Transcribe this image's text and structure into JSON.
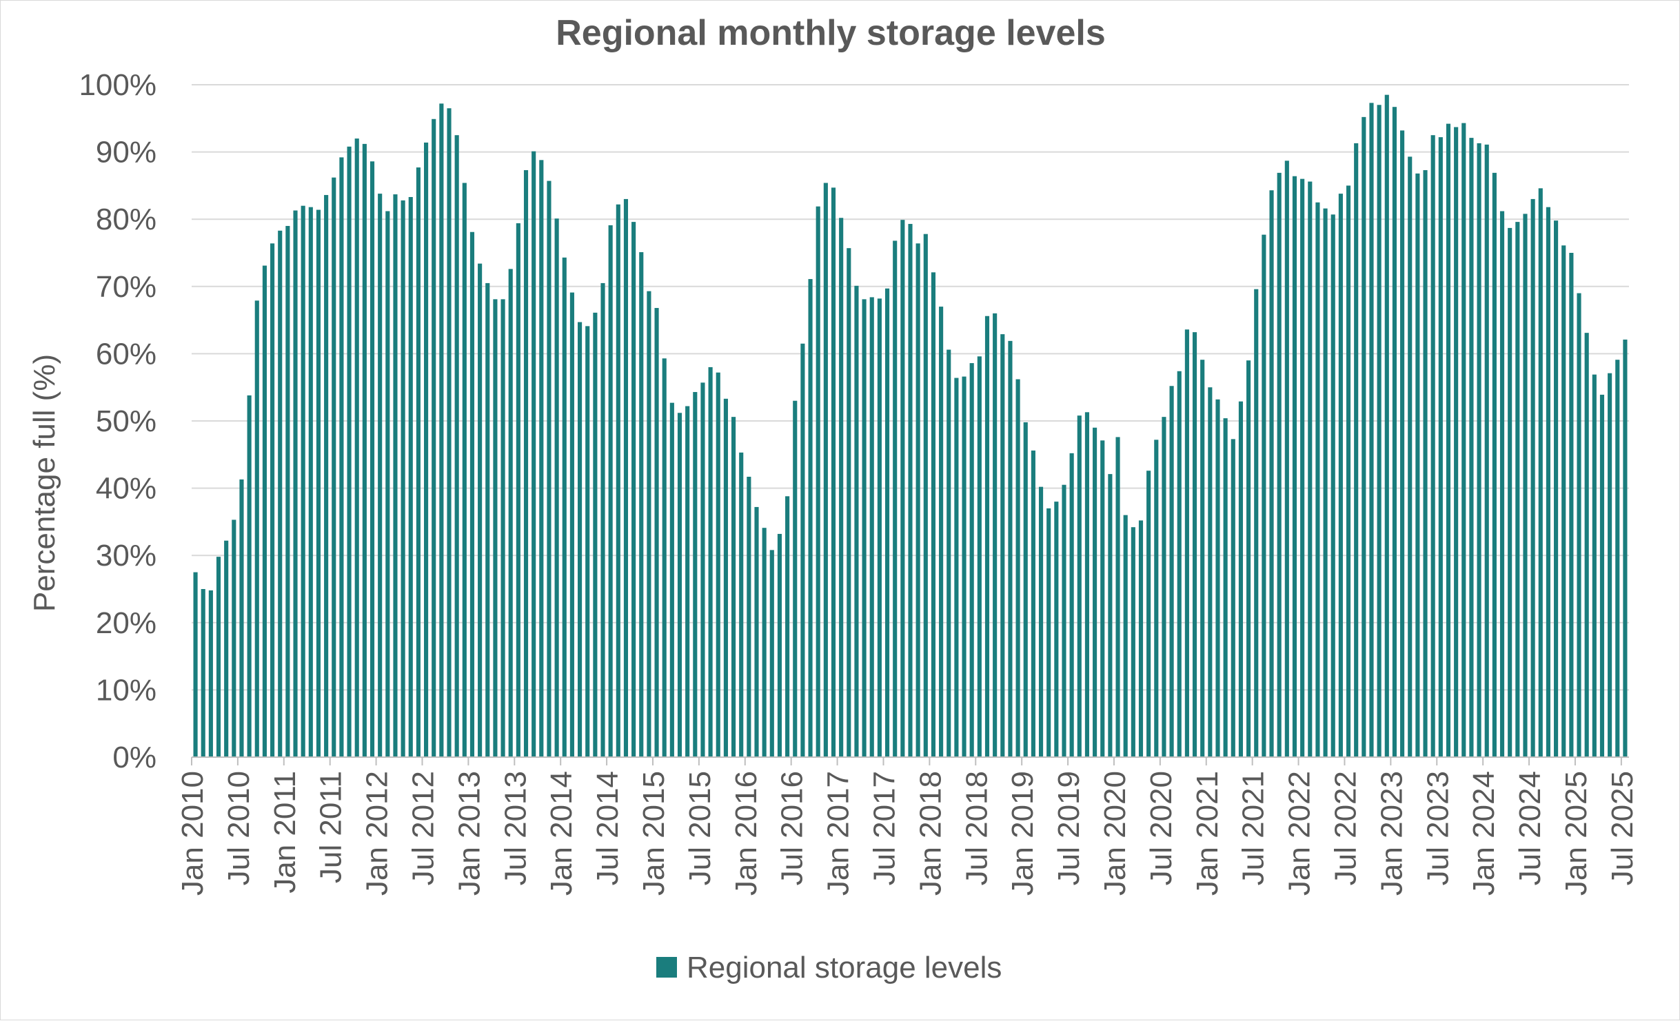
{
  "chart_data": {
    "type": "bar",
    "title": "Regional monthly storage levels",
    "ylabel": "Percentage full (%)",
    "xlabel": "",
    "ylim": [
      0,
      100
    ],
    "yticks": [
      "0%",
      "10%",
      "20%",
      "30%",
      "40%",
      "50%",
      "60%",
      "70%",
      "80%",
      "90%",
      "100%"
    ],
    "x_tick_labels": [
      "Jan 2010",
      "Jul 2010",
      "Jan 2011",
      "Jul 2011",
      "Jan 2012",
      "Jul 2012",
      "Jan 2013",
      "Jul 2013",
      "Jan 2014",
      "Jul 2014",
      "Jan 2015",
      "Jul 2015",
      "Jan 2016",
      "Jul 2016",
      "Jan 2017",
      "Jul 2017",
      "Jan 2018",
      "Jul 2018",
      "Jan 2019",
      "Jul 2019",
      "Jan 2020",
      "Jul 2020",
      "Jan 2021",
      "Jul 2021",
      "Jan 2022",
      "Jul 2022",
      "Jan 2023",
      "Jul 2023",
      "Jan 2024",
      "Jul 2024",
      "Jan 2025",
      "Jul 2025"
    ],
    "grid": true,
    "legend_position": "bottom",
    "color": "#1a7d7d",
    "series": [
      {
        "name": "Regional storage levels",
        "values": [
          27.5,
          25,
          24.8,
          29.8,
          32.2,
          35.3,
          41.3,
          53.8,
          67.9,
          73.1,
          76.4,
          78.3,
          79,
          81.3,
          82,
          81.8,
          81.4,
          83.6,
          86.2,
          89.2,
          90.8,
          92,
          91.2,
          88.6,
          83.8,
          81.2,
          83.7,
          82.8,
          83.3,
          87.7,
          91.4,
          94.9,
          97.2,
          96.5,
          92.5,
          85.4,
          78.1,
          73.4,
          70.5,
          68.1,
          68.1,
          72.6,
          79.4,
          87.3,
          90.1,
          88.8,
          85.7,
          80.1,
          74.3,
          69.1,
          64.7,
          64.1,
          66.1,
          70.5,
          79.1,
          82.2,
          83,
          79.6,
          75.1,
          69.3,
          66.8,
          59.3,
          52.7,
          51.2,
          52.2,
          54.3,
          55.7,
          58,
          57.2,
          53.3,
          50.6,
          45.3,
          41.7,
          37.2,
          34.1,
          30.8,
          33.2,
          38.8,
          53,
          61.5,
          71.1,
          81.9,
          85.4,
          84.7,
          80.2,
          75.7,
          70.1,
          68.1,
          68.4,
          68.2,
          69.7,
          76.8,
          79.9,
          79.3,
          76.4,
          77.8,
          72.1,
          67,
          60.6,
          56.4,
          56.6,
          58.6,
          59.6,
          65.6,
          66,
          62.9,
          61.9,
          56.2,
          49.8,
          45.6,
          40.2,
          37,
          38,
          40.5,
          45.2,
          50.8,
          51.3,
          49,
          47.1,
          42.1,
          47.6,
          36,
          34.2,
          35.2,
          42.6,
          47.2,
          50.6,
          55.2,
          57.4,
          63.6,
          63.2,
          59.1,
          55,
          53.2,
          50.4,
          47.3,
          52.9,
          59,
          69.6,
          77.7,
          84.3,
          86.9,
          88.7,
          86.4,
          86,
          85.6,
          82.5,
          81.6,
          80.7,
          83.8,
          85,
          91.3,
          95.2,
          97.3,
          97,
          98.5,
          96.7,
          93.2,
          89.3,
          86.8,
          87.3,
          92.5,
          92.2,
          94.2,
          93.7,
          94.3,
          92.1,
          91.3,
          91.1,
          86.9,
          81.2,
          78.7,
          79.6,
          80.8,
          83,
          84.6,
          81.8,
          79.8,
          76.1,
          75,
          69,
          63.1,
          56.9,
          53.9,
          57.1,
          59.1,
          62.1
        ]
      }
    ]
  }
}
